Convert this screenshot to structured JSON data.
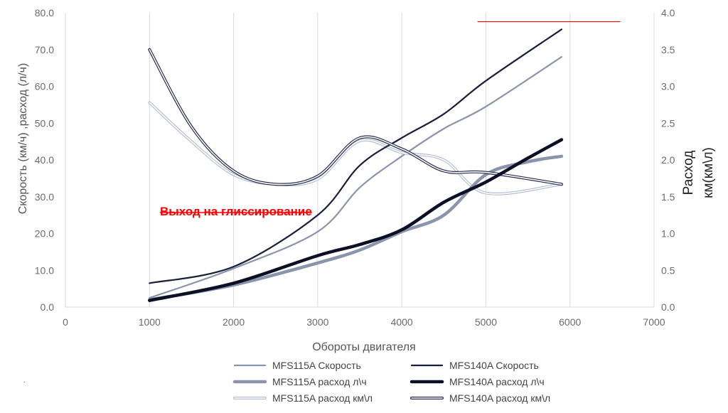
{
  "chart_data": {
    "type": "line",
    "title": "",
    "xlabel": "Обороты двигателя",
    "ylabel_left": "Скорость (км/ч) ,расход (л/ч)",
    "ylabel_right_line1": "Расход",
    "ylabel_right_line2": "км(км\\л)",
    "xlim": [
      0,
      7000
    ],
    "ylim_left": [
      0,
      80
    ],
    "ylim_right": [
      0,
      4
    ],
    "x_ticks": [
      "0",
      "1000",
      "2000",
      "3000",
      "4000",
      "5000",
      "6000",
      "7000"
    ],
    "y_ticks_left": [
      "0.0",
      "10.0",
      "20.0",
      "30.0",
      "40.0",
      "50.0",
      "60.0",
      "70.0",
      "80.0"
    ],
    "y_ticks_right": [
      "0.0",
      "0.5",
      "1.0",
      "1.5",
      "2.0",
      "2.5",
      "3.0",
      "3.5",
      "4.0"
    ],
    "grid": "vertical",
    "annotation": "Выход на глиссирование",
    "annotation_style": "strikethrough",
    "reference_line": {
      "x_from": 4900,
      "x_to": 6600,
      "y_left": 77.6,
      "color": "#ff0000"
    },
    "series": [
      {
        "name": "MFS115A Скорость",
        "axis": "left",
        "color": "#8a94ab",
        "style": "thin",
        "x": [
          1000,
          2000,
          3000,
          3500,
          4000,
          4500,
          5000,
          5900
        ],
        "values": [
          2.5,
          10.5,
          20.5,
          32.5,
          41.0,
          48.5,
          54.5,
          68.0
        ]
      },
      {
        "name": "MFS140A Скорость",
        "axis": "left",
        "color": "#1b1f3b",
        "style": "thin",
        "x": [
          1000,
          2000,
          3000,
          3500,
          4000,
          4500,
          5000,
          5900
        ],
        "values": [
          6.5,
          11.0,
          25.0,
          38.5,
          46.0,
          52.5,
          61.5,
          75.5
        ]
      },
      {
        "name": "MFS115A расход л\\ч",
        "axis": "left",
        "color": "#8a94ab",
        "style": "thick",
        "x": [
          1000,
          2000,
          3000,
          3500,
          4000,
          4500,
          5000,
          5500,
          5900
        ],
        "values": [
          2.0,
          6.0,
          12.0,
          15.5,
          20.5,
          25.0,
          36.0,
          39.5,
          41.0
        ]
      },
      {
        "name": "MFS140A расход л\\ч",
        "axis": "left",
        "color": "#0d0f24",
        "style": "thick",
        "x": [
          1000,
          2000,
          3000,
          3500,
          4000,
          4500,
          5000,
          5500,
          5900
        ],
        "values": [
          1.8,
          6.5,
          14.0,
          17.0,
          21.0,
          28.5,
          34.0,
          40.5,
          45.5
        ]
      },
      {
        "name": "MFS115A расход км\\л",
        "axis": "right",
        "color": "#b7bfd4",
        "style": "double",
        "x": [
          1000,
          1500,
          2000,
          2500,
          3000,
          3500,
          4000,
          4500,
          5000,
          5900
        ],
        "values": [
          2.78,
          2.25,
          1.8,
          1.67,
          1.74,
          2.26,
          2.1,
          2.0,
          1.55,
          1.67
        ]
      },
      {
        "name": "MFS140A расход км\\л",
        "axis": "right",
        "color": "#2a2d4f",
        "style": "double",
        "x": [
          1000,
          1500,
          2000,
          2500,
          3000,
          3500,
          4000,
          4500,
          5000,
          5900
        ],
        "values": [
          3.5,
          2.45,
          1.85,
          1.67,
          1.78,
          2.3,
          2.15,
          1.85,
          1.83,
          1.67
        ]
      }
    ]
  },
  "footnote": "."
}
